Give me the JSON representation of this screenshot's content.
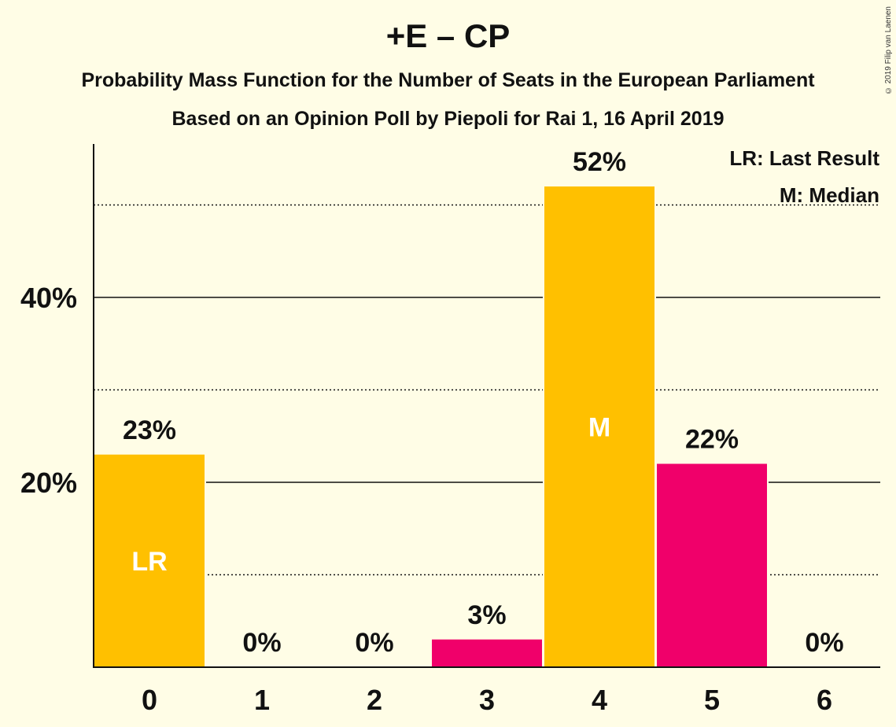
{
  "chart_data": {
    "type": "bar",
    "title": "+E – CP",
    "subtitle": "Probability Mass Function for the Number of Seats in the European Parliament",
    "subtitle2": "Based on an Opinion Poll by Piepoli for Rai 1, 16 April 2019",
    "copyright": "© 2019 Filip van Laenen",
    "categories": [
      "0",
      "1",
      "2",
      "3",
      "4",
      "5",
      "6"
    ],
    "values": [
      23,
      0,
      0,
      3,
      52,
      22,
      0
    ],
    "value_labels": [
      "23%",
      "0%",
      "0%",
      "3%",
      "52%",
      "22%",
      "0%"
    ],
    "bar_colors": [
      "#FFC000",
      "#FFC000",
      "#FFC000",
      "#F0006A",
      "#FFC000",
      "#F0006A",
      "#F0006A"
    ],
    "in_bar_labels": [
      "LR",
      "",
      "",
      "",
      "M",
      "",
      ""
    ],
    "legend": [
      "LR: Last Result",
      "M: Median"
    ],
    "legend_position": "top-right",
    "y_ticks": [
      {
        "value": 20,
        "label": "20%"
      },
      {
        "value": 40,
        "label": "40%"
      }
    ],
    "y_minor_gridlines": [
      10,
      30,
      50
    ],
    "ylim": [
      0,
      57
    ],
    "xlabel": "",
    "ylabel": "",
    "grid": true
  }
}
